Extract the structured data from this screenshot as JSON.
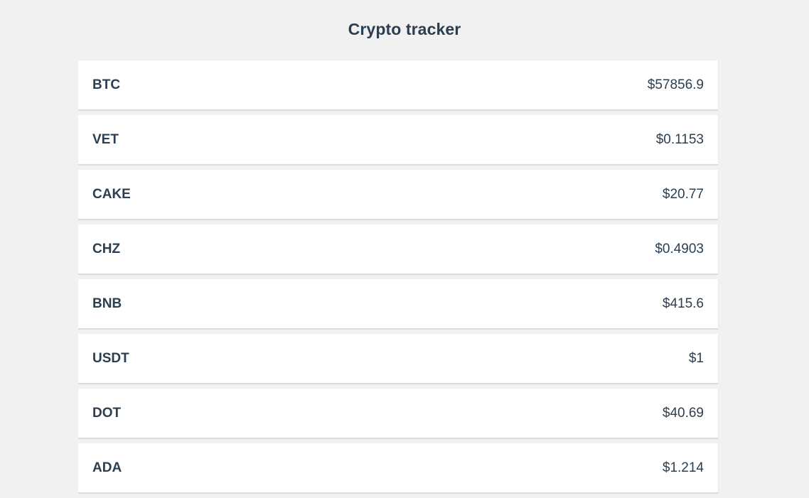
{
  "header": {
    "title": "Crypto tracker"
  },
  "coins": [
    {
      "symbol": "BTC",
      "price": "$57856.9"
    },
    {
      "symbol": "VET",
      "price": "$0.1153"
    },
    {
      "symbol": "CAKE",
      "price": "$20.77"
    },
    {
      "symbol": "CHZ",
      "price": "$0.4903"
    },
    {
      "symbol": "BNB",
      "price": "$415.6"
    },
    {
      "symbol": "USDT",
      "price": "$1"
    },
    {
      "symbol": "DOT",
      "price": "$40.69"
    },
    {
      "symbol": "ADA",
      "price": "$1.214"
    }
  ]
}
